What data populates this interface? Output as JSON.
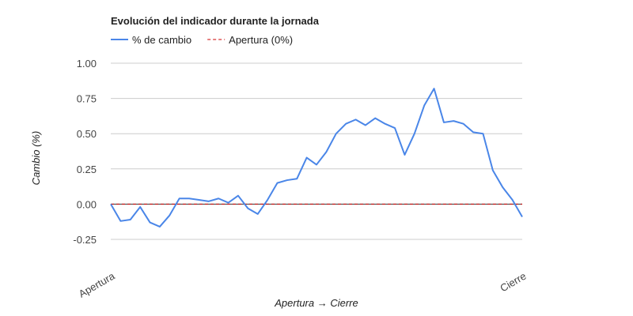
{
  "chart_data": {
    "type": "line",
    "title": "Evolución del indicador durante la jornada",
    "x_label": "Apertura → Cierre",
    "y_label": "Cambio (%)",
    "categories": [
      "Apertura",
      null,
      null,
      null,
      null,
      null,
      null,
      null,
      null,
      null,
      null,
      null,
      null,
      null,
      null,
      null,
      null,
      null,
      null,
      null,
      null,
      null,
      null,
      null,
      null,
      null,
      null,
      null,
      null,
      null,
      null,
      null,
      null,
      null,
      null,
      null,
      null,
      null,
      null,
      null,
      null,
      null,
      "Cierre"
    ],
    "series": [
      {
        "name": "% de cambio",
        "color": "#4a86e8",
        "values": [
          0.0,
          -0.12,
          -0.11,
          -0.02,
          -0.13,
          -0.16,
          -0.08,
          0.04,
          0.04,
          0.03,
          0.02,
          0.04,
          0.01,
          0.06,
          -0.03,
          -0.07,
          0.03,
          0.15,
          0.17,
          0.18,
          0.33,
          0.28,
          0.37,
          0.5,
          0.57,
          0.6,
          0.56,
          0.61,
          0.57,
          0.54,
          0.35,
          0.5,
          0.7,
          0.82,
          0.58,
          0.59,
          0.57,
          0.51,
          0.5,
          0.24,
          0.12,
          0.03,
          -0.09
        ]
      }
    ],
    "reference_line": {
      "name": "Apertura (0%)",
      "value": 0,
      "color": "#cc0000"
    },
    "ylim": [
      -0.25,
      1.0
    ],
    "yticks": [
      {
        "value": -0.25,
        "label": "-0.25"
      },
      {
        "value": 0,
        "label": "0.00"
      },
      {
        "value": 0.25,
        "label": "0.25"
      },
      {
        "value": 0.5,
        "label": "0.50"
      },
      {
        "value": 0.75,
        "label": "0.75"
      },
      {
        "value": 1.0,
        "label": "1.00"
      }
    ],
    "grid": true
  }
}
